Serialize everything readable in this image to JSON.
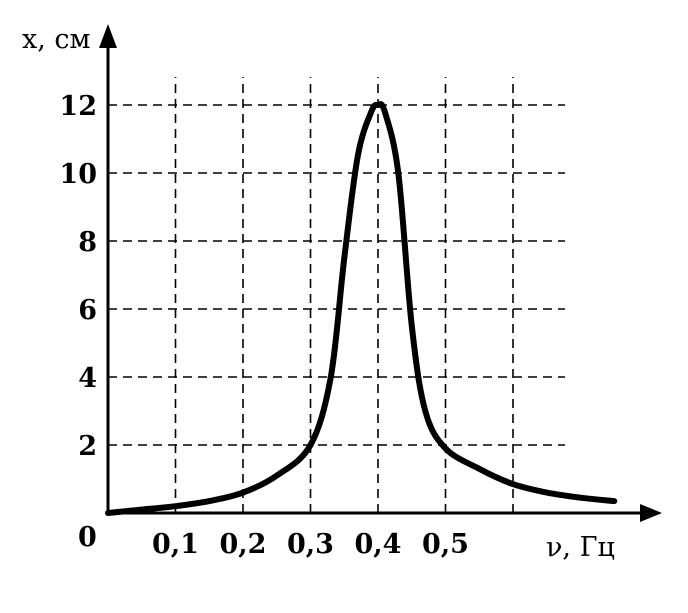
{
  "chart_data": {
    "type": "line",
    "title": "",
    "xlabel": "ν, Гц",
    "ylabel": "x, см",
    "origin_label": "0",
    "xlim": [
      0,
      0.75
    ],
    "ylim": [
      0,
      12
    ],
    "grid": true,
    "x_ticks": [
      {
        "value": 0.1,
        "label": "0,1"
      },
      {
        "value": 0.2,
        "label": "0,2"
      },
      {
        "value": 0.3,
        "label": "0,3"
      },
      {
        "value": 0.4,
        "label": "0,4"
      },
      {
        "value": 0.5,
        "label": "0,5"
      }
    ],
    "x_gridlines": [
      0.1,
      0.2,
      0.3,
      0.4,
      0.5,
      0.6
    ],
    "y_ticks": [
      {
        "value": 2,
        "label": "2"
      },
      {
        "value": 4,
        "label": "4"
      },
      {
        "value": 6,
        "label": "6"
      },
      {
        "value": 8,
        "label": "8"
      },
      {
        "value": 10,
        "label": "10"
      },
      {
        "value": 12,
        "label": "12"
      }
    ],
    "series": [
      {
        "x": [
          0,
          0.05,
          0.1,
          0.15,
          0.2,
          0.25,
          0.3,
          0.33,
          0.35,
          0.37,
          0.39,
          0.4,
          0.41,
          0.43,
          0.45,
          0.47,
          0.5,
          0.55,
          0.6,
          0.65,
          0.7,
          0.75
        ],
        "y": [
          0,
          0.1,
          0.2,
          0.35,
          0.6,
          1.1,
          2.0,
          4.0,
          7.5,
          10.5,
          11.8,
          12.0,
          11.8,
          10.0,
          5.5,
          3.0,
          1.9,
          1.3,
          0.85,
          0.6,
          0.45,
          0.35
        ]
      }
    ]
  }
}
